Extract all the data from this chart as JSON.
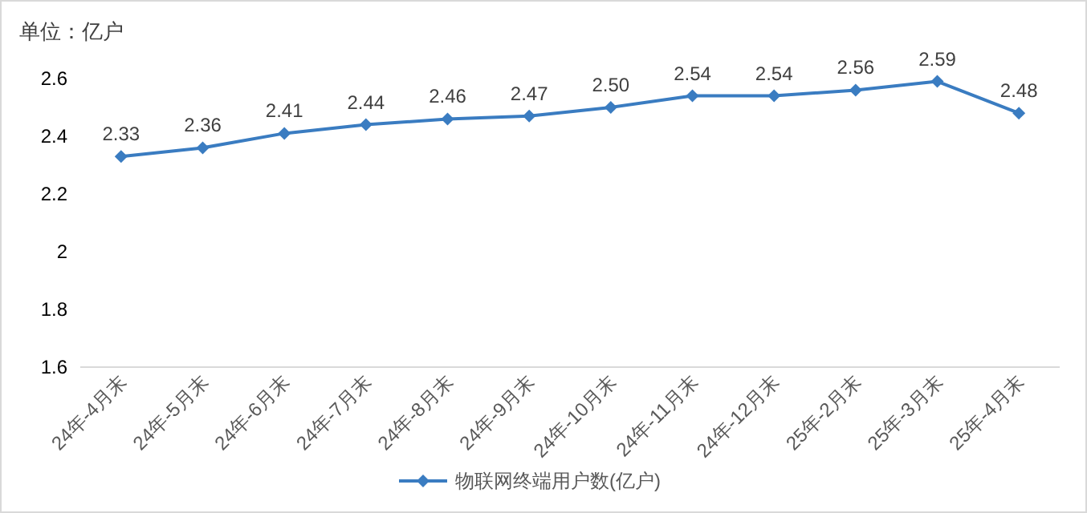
{
  "chart_data": {
    "type": "line",
    "ylabel": "单位：亿户",
    "categories": [
      "24年-4月末",
      "24年-5月末",
      "24年-6月末",
      "24年-7月末",
      "24年-8月末",
      "24年-9月末",
      "24年-10月末",
      "24年-11月末",
      "24年-12月末",
      "25年-2月末",
      "25年-3月末",
      "25年-4月末"
    ],
    "series": [
      {
        "name": "物联网终端用户数(亿户)",
        "color": "#3a7cc1",
        "values": [
          2.33,
          2.36,
          2.41,
          2.44,
          2.46,
          2.47,
          2.5,
          2.54,
          2.54,
          2.56,
          2.59,
          2.48
        ]
      }
    ],
    "value_labels": [
      "2.33",
      "2.36",
      "2.41",
      "2.44",
      "2.46",
      "2.47",
      "2.50",
      "2.54",
      "2.54",
      "2.56",
      "2.59",
      "2.48"
    ],
    "ylim": [
      1.6,
      2.6
    ],
    "yticks": [
      1.6,
      1.8,
      2,
      2.2,
      2.4,
      2.6
    ],
    "grid": false,
    "legend": "bottom",
    "marker": "diamond",
    "line_style": "solid"
  }
}
